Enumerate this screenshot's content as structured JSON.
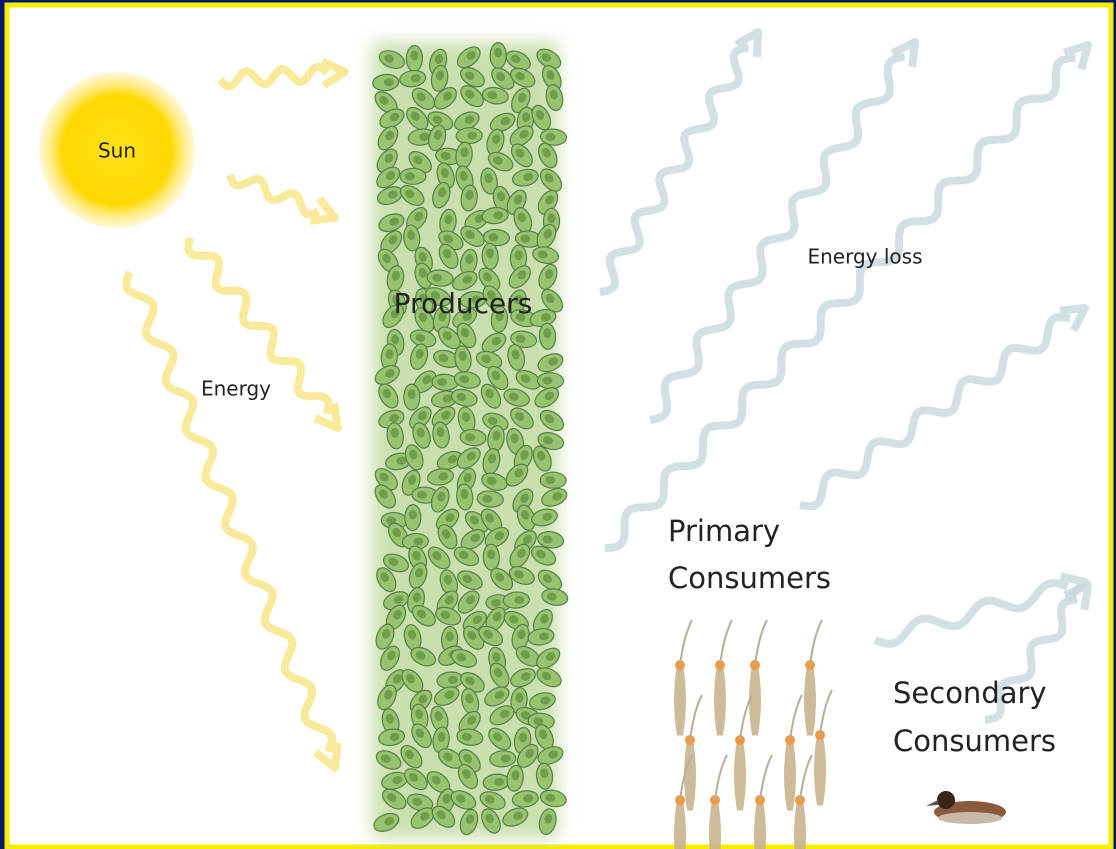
{
  "labels": {
    "sun": "Sun",
    "energy": "Energy",
    "producers": "Producers",
    "energy_loss": "Energy loss",
    "primary_consumers": [
      "Primary",
      "Consumers"
    ],
    "secondary_consumers": [
      "Secondary",
      "Consumers"
    ]
  }
}
